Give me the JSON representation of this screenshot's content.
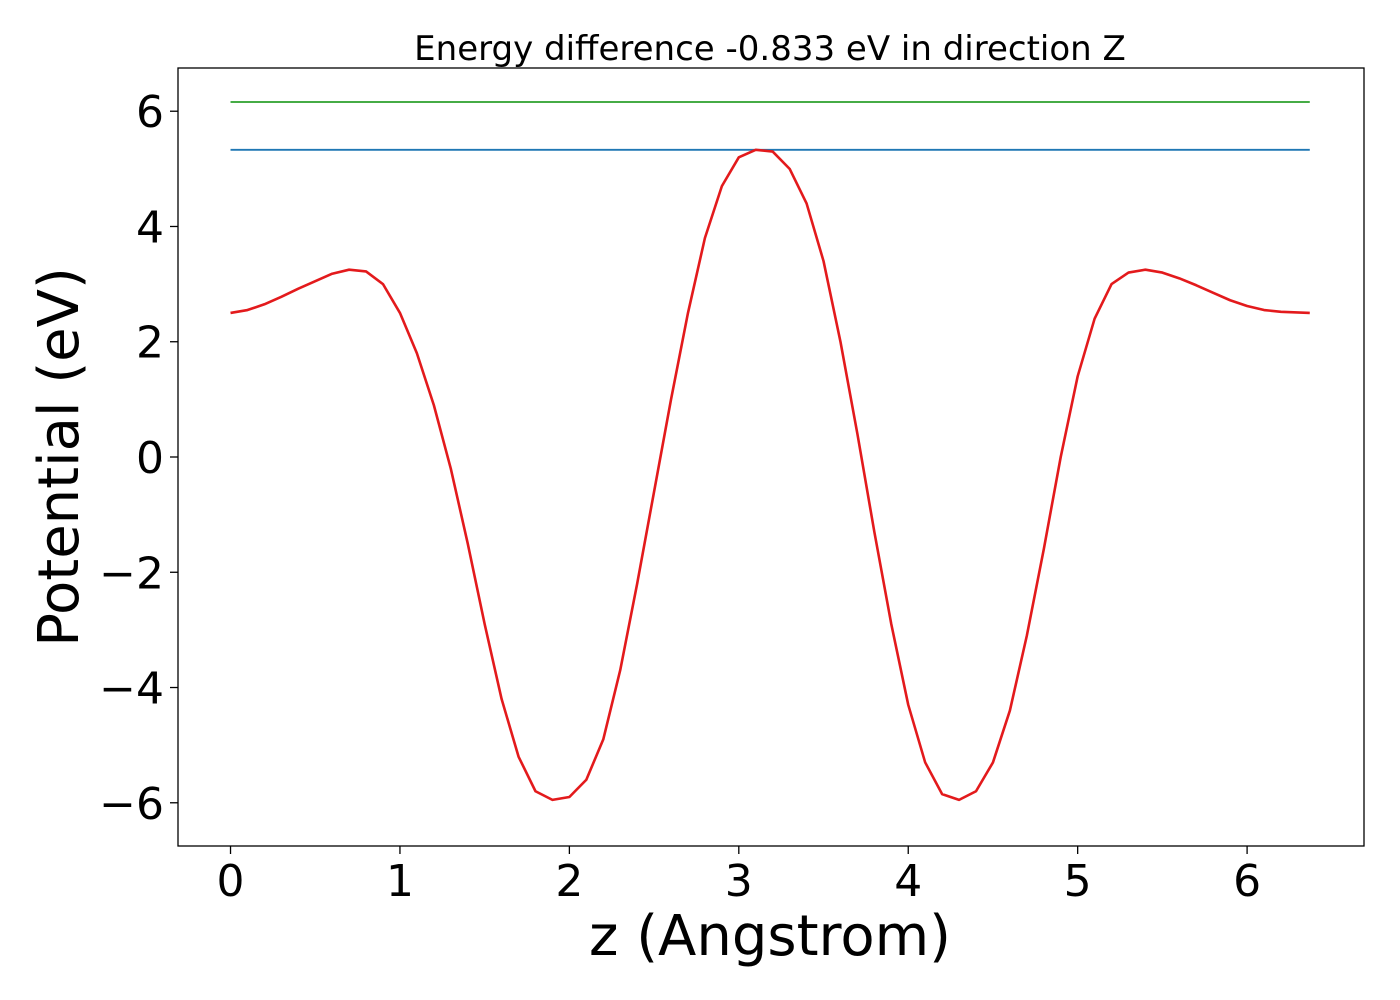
{
  "chart_data": {
    "type": "line",
    "title": "Energy difference -0.833 eV in direction Z",
    "xlabel": "z (Angstrom)",
    "ylabel": "Potential (eV)",
    "xlim": [
      -0.31,
      6.69
    ],
    "ylim": [
      -6.75,
      6.75
    ],
    "grid": false,
    "xticks": [
      0,
      1,
      2,
      3,
      4,
      5,
      6
    ],
    "xtick_labels": [
      "0",
      "1",
      "2",
      "3",
      "4",
      "5",
      "6"
    ],
    "yticks": [
      -6,
      -4,
      -2,
      0,
      2,
      4,
      6
    ],
    "ytick_labels": [
      "−6",
      "−4",
      "−2",
      "0",
      "2",
      "4",
      "6"
    ],
    "series": [
      {
        "color": "#2ca02c",
        "x": [
          0,
          6.37
        ],
        "y": [
          6.16,
          6.16
        ]
      },
      {
        "color": "#1f77b4",
        "x": [
          0,
          6.37
        ],
        "y": [
          5.33,
          5.33
        ]
      },
      {
        "color": "#e31a1c",
        "x": [
          0.0,
          0.1,
          0.2,
          0.3,
          0.4,
          0.5,
          0.6,
          0.7,
          0.8,
          0.9,
          1.0,
          1.1,
          1.2,
          1.3,
          1.4,
          1.5,
          1.6,
          1.7,
          1.8,
          1.9,
          2.0,
          2.1,
          2.2,
          2.3,
          2.4,
          2.5,
          2.6,
          2.7,
          2.8,
          2.9,
          3.0,
          3.1,
          3.2,
          3.3,
          3.4,
          3.5,
          3.6,
          3.7,
          3.8,
          3.9,
          4.0,
          4.1,
          4.2,
          4.3,
          4.4,
          4.5,
          4.6,
          4.7,
          4.8,
          4.9,
          5.0,
          5.1,
          5.2,
          5.3,
          5.4,
          5.5,
          5.6,
          5.7,
          5.8,
          5.9,
          6.0,
          6.1,
          6.2,
          6.37
        ],
        "y": [
          2.5,
          2.55,
          2.65,
          2.78,
          2.92,
          3.05,
          3.18,
          3.25,
          3.22,
          3.0,
          2.5,
          1.8,
          0.9,
          -0.2,
          -1.5,
          -2.9,
          -4.2,
          -5.2,
          -5.8,
          -5.95,
          -5.9,
          -5.6,
          -4.9,
          -3.7,
          -2.2,
          -0.6,
          1.0,
          2.5,
          3.8,
          4.7,
          5.2,
          5.33,
          5.3,
          5.0,
          4.4,
          3.4,
          2.0,
          0.4,
          -1.3,
          -2.9,
          -4.3,
          -5.3,
          -5.85,
          -5.95,
          -5.8,
          -5.3,
          -4.4,
          -3.1,
          -1.6,
          0.0,
          1.4,
          2.4,
          3.0,
          3.2,
          3.25,
          3.2,
          3.1,
          2.98,
          2.85,
          2.72,
          2.62,
          2.55,
          2.52,
          2.5
        ]
      }
    ]
  }
}
